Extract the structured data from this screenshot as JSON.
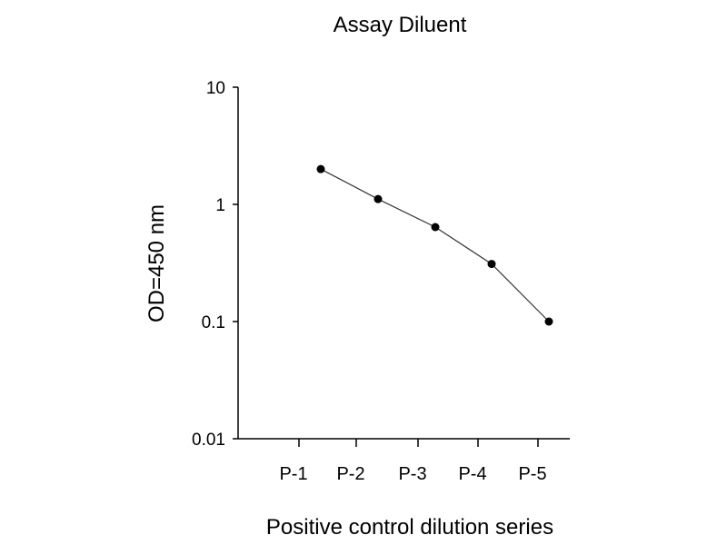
{
  "chart_data": {
    "type": "line",
    "title": "Assay Diluent",
    "xlabel": "Positive control dilution series",
    "ylabel": "OD=450 nm",
    "categories": [
      "P-1",
      "P-2",
      "P-3",
      "P-4",
      "P-5"
    ],
    "y_scale": "log",
    "ylim": [
      0.01,
      10
    ],
    "y_ticks": [
      "10",
      "1",
      "0.1",
      "0.01"
    ],
    "grid": false,
    "series": [
      {
        "values": [
          2.0,
          1.11,
          0.64,
          0.31,
          0.1
        ],
        "color": "#000000",
        "marker": "filled-circle"
      }
    ]
  }
}
